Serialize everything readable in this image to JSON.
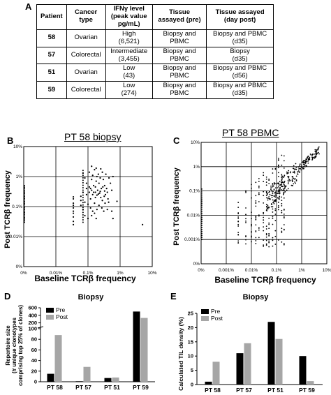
{
  "figure": {
    "panel_labels": {
      "a": "A",
      "b": "B",
      "c": "C",
      "d": "D",
      "e": "E"
    },
    "table": {
      "headers": [
        "Patient",
        "Cancer type",
        "IFNγ level (peak value pg/mL)",
        "Tissue assayed (pre)",
        "Tissue assayed (day post)"
      ],
      "header_lines": [
        [
          "Patient"
        ],
        [
          "Cancer",
          "type"
        ],
        [
          "IFNγ level",
          "(peak value",
          "pg/mL)"
        ],
        [
          "Tissue",
          "assayed (pre)"
        ],
        [
          "Tissue assayed",
          "(day post)"
        ]
      ],
      "rows": [
        {
          "patient": "58",
          "cancer": "Ovarian",
          "ifn_level": "High",
          "ifn_value": "(6,521)",
          "pre": [
            "Biopsy and",
            "PBMC"
          ],
          "post": [
            "Biopsy and PBMC",
            "(d35)"
          ]
        },
        {
          "patient": "57",
          "cancer": "Colorectal",
          "ifn_level": "Intermediate",
          "ifn_value": "(3,455)",
          "pre": [
            "Biopsy and",
            "PBMC"
          ],
          "post": [
            "Biopsy",
            "(d35)"
          ]
        },
        {
          "patient": "51",
          "cancer": "Ovarian",
          "ifn_level": "Low",
          "ifn_value": "(43)",
          "pre": [
            "Biopsy and",
            "PBMC"
          ],
          "post": [
            "Biopsy and PBMC",
            "(d56)"
          ]
        },
        {
          "patient": "59",
          "cancer": "Colorectal",
          "ifn_level": "Low",
          "ifn_value": "(274)",
          "pre": [
            "Biopsy and",
            "PBMC"
          ],
          "post": [
            "Biopsy and PBMC",
            "(d35)"
          ]
        }
      ]
    }
  },
  "chart_data": [
    {
      "panel": "B",
      "type": "scatter",
      "title": "PT 58 biopsy",
      "xlabel": "Baseline TCRβ frequency",
      "ylabel": "Post TCRβ frequency",
      "scale": "log",
      "xticks": [
        "0%",
        "0.01%",
        "0.1%",
        "1%",
        "10%"
      ],
      "yticks": [
        "10%",
        "1%",
        "0.1%",
        "0.01%",
        "0%"
      ],
      "grid": true,
      "points": [
        [
          0.00035,
          0.0018
        ],
        [
          0.00035,
          0.0013
        ],
        [
          0.00035,
          0.0009
        ],
        [
          0.00035,
          0.0006
        ],
        [
          0.00035,
          0.00045
        ],
        [
          0.00035,
          0.00032
        ],
        [
          0.00035,
          0.00025
        ],
        [
          0.00035,
          0.0021
        ],
        [
          0.00035,
          0.0011
        ],
        [
          0.00035,
          0.0007
        ],
        [
          0.0007,
          0.013
        ],
        [
          0.0008,
          0.009
        ],
        [
          0.0009,
          0.006
        ],
        [
          0.0011,
          0.014
        ],
        [
          0.0012,
          0.004
        ],
        [
          0.0013,
          0.008
        ],
        [
          0.0014,
          0.011
        ],
        [
          0.0015,
          0.005
        ],
        [
          0.0016,
          0.017
        ],
        [
          0.0017,
          0.003
        ],
        [
          0.0018,
          0.007
        ],
        [
          0.0019,
          0.01
        ],
        [
          0.0021,
          0.012
        ],
        [
          0.0022,
          0.006
        ],
        [
          0.0024,
          0.009
        ],
        [
          0.0026,
          0.004
        ],
        [
          0.0028,
          0.014
        ],
        [
          0.003,
          0.008
        ],
        [
          0.0033,
          0.005
        ],
        [
          0.0036,
          0.012
        ],
        [
          0.004,
          0.003
        ],
        [
          0.0045,
          0.009
        ],
        [
          0.005,
          0.006
        ],
        [
          0.0011,
          0.003
        ],
        [
          0.0014,
          0.0025
        ],
        [
          0.0017,
          0.002
        ],
        [
          0.002,
          0.0035
        ],
        [
          0.0025,
          0.002
        ],
        [
          0.0035,
          0.0025
        ],
        [
          0.0042,
          0.0018
        ],
        [
          0.0009,
          0.0025
        ],
        [
          0.0012,
          0.0018
        ],
        [
          0.0016,
          0.0013
        ],
        [
          0.0019,
          0.0024
        ],
        [
          0.0023,
          0.0028
        ],
        [
          0.0028,
          0.0016
        ],
        [
          0.0032,
          0.0022
        ],
        [
          0.0038,
          0.004
        ],
        [
          0.0055,
          0.0035
        ],
        [
          0.006,
          0.01
        ],
        [
          0.0013,
          0.022
        ],
        [
          0.0018,
          0.019
        ],
        [
          0.0025,
          0.018
        ],
        [
          0.0008,
          0.0014
        ],
        [
          0.001,
          0.0012
        ],
        [
          0.0012,
          0.0009
        ],
        [
          0.0014,
          0.0007
        ],
        [
          0.0016,
          0.0006
        ],
        [
          0.0019,
          0.0008
        ],
        [
          0.0022,
          0.0011
        ],
        [
          0.0027,
          0.0009
        ],
        [
          0.0031,
          0.0007
        ],
        [
          0.0034,
          0.0013
        ],
        [
          0.0007,
          0.003
        ],
        [
          0.0009,
          0.004
        ],
        [
          0.0011,
          0.0045
        ],
        [
          0.0013,
          0.0035
        ],
        [
          0.0015,
          0.003
        ],
        [
          0.0017,
          0.0045
        ],
        [
          0.0021,
          0.0026
        ],
        [
          0.0024,
          0.0032
        ],
        [
          0.0029,
          0.0045
        ],
        [
          0.0033,
          0.0033
        ],
        [
          0.0006,
          0.0022
        ],
        [
          0.0006,
          0.0016
        ],
        [
          0.0007,
          0.0008
        ],
        [
          0.0008,
          0.0005
        ],
        [
          0.001,
          0.0004
        ],
        [
          0.0013,
          0.0005
        ],
        [
          0.0018,
          0.0004
        ],
        [
          0.004,
          0.0008
        ],
        [
          0.006,
          0.0004
        ],
        [
          0.008,
          0.0015
        ],
        [
          0.0055,
          0.0007
        ],
        [
          0.0044,
          0.0014
        ],
        [
          0.05,
          0.00025
        ],
        [
          0.0006,
          0.0011
        ]
      ],
      "vertical_line_points": {
        "x": 0.0007,
        "y_from": 0.0003,
        "y_to": 0.016,
        "count": 22
      }
    },
    {
      "panel": "C",
      "type": "scatter",
      "title": "PT 58 PBMC",
      "xlabel": "Baseline TCRβ frequency",
      "ylabel": "Post TCRβ frequency",
      "scale": "log",
      "xticks": [
        "0%",
        "0.001%",
        "0.01%",
        "0.1%",
        "1%",
        "10%"
      ],
      "yticks": [
        "10%",
        "1%",
        "0.1%",
        "0.01%",
        "0.001%",
        "0%"
      ],
      "grid": true,
      "trend": {
        "x_from": 2e-05,
        "x_to": 0.04,
        "description": "diagonal cluster"
      }
    },
    {
      "panel": "D",
      "type": "bar",
      "title": "Biopsy",
      "ylabel": "Repertoire size (# unique clonotypes comprising top 25% of clones)",
      "ylabel_lines": [
        "Repertoire size",
        "(# unique clonotypes",
        "comprising top 25% of clones)"
      ],
      "categories": [
        "PT 58",
        "PT 57",
        "PT 51",
        "PT 59"
      ],
      "series": [
        {
          "name": "Pre",
          "color": "#000000",
          "values": [
            15,
            1,
            7,
            500
          ]
        },
        {
          "name": "Post",
          "color": "#a6a6a6",
          "values": [
            88,
            28,
            8,
            330
          ]
        }
      ],
      "yticks": [
        "0",
        "20",
        "40",
        "60",
        "80",
        "100",
        "200",
        "400",
        "600"
      ],
      "axis_break": true,
      "legend": "top-left"
    },
    {
      "panel": "E",
      "type": "bar",
      "title": "Biopsy",
      "ylabel": "Calculated TIL density (%)",
      "categories": [
        "PT 58",
        "PT 57",
        "PT 51",
        "PT 59"
      ],
      "series": [
        {
          "name": "Pre",
          "color": "#000000",
          "values": [
            1,
            11,
            22,
            10
          ]
        },
        {
          "name": "Post",
          "color": "#a6a6a6",
          "values": [
            8,
            14.5,
            16,
            1.2
          ]
        }
      ],
      "yticks": [
        "0",
        "5",
        "10",
        "15",
        "20",
        "25"
      ],
      "ylim": [
        0,
        25
      ],
      "legend": "top-left"
    }
  ]
}
